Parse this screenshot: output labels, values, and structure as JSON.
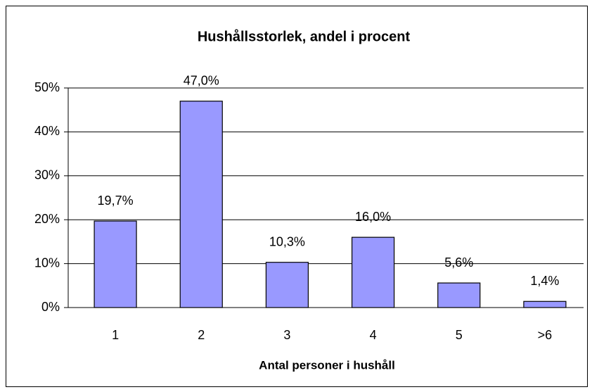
{
  "chart_data": {
    "type": "bar",
    "title": "Hushållsstorlek, andel i procent",
    "x_label": "Antal personer i hushåll",
    "categories": [
      "1",
      "2",
      "3",
      "4",
      "5",
      ">6"
    ],
    "values": [
      19.7,
      47.0,
      10.3,
      16.0,
      5.6,
      1.4
    ],
    "value_labels": [
      "19,7%",
      "47,0%",
      "10,3%",
      "16,0%",
      "5,6%",
      "1,4%"
    ],
    "color": "#9999ff",
    "ylim": [
      0,
      50
    ],
    "yticks": [
      {
        "value": 0,
        "label": "0%"
      },
      {
        "value": 10,
        "label": "10%"
      },
      {
        "value": 20,
        "label": "20%"
      },
      {
        "value": 30,
        "label": "30%"
      },
      {
        "value": 40,
        "label": "40%"
      },
      {
        "value": 50,
        "label": "50%"
      }
    ],
    "grid": true
  }
}
